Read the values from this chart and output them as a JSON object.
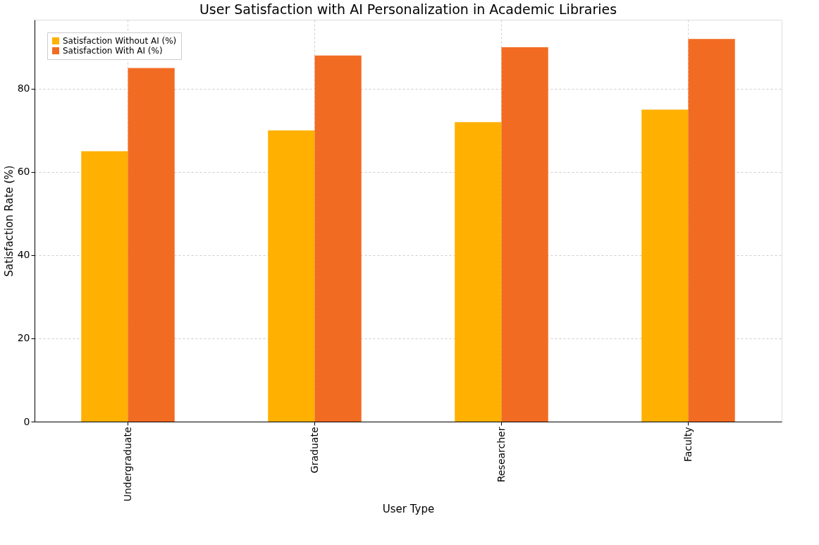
{
  "chart_data": {
    "type": "bar",
    "title": "User Satisfaction with AI Personalization in Academic Libraries",
    "xlabel": "User Type",
    "ylabel": "Satisfaction Rate (%)",
    "categories": [
      "Undergraduate",
      "Graduate",
      "Researcher",
      "Faculty"
    ],
    "series": [
      {
        "name": "Satisfaction Without AI (%)",
        "color": "#ffb000",
        "values": [
          65,
          70,
          72,
          75
        ]
      },
      {
        "name": "Satisfaction With AI (%)",
        "color": "#f26b22",
        "values": [
          85,
          88,
          90,
          92
        ]
      }
    ],
    "ylim": [
      0,
      96.6
    ],
    "yticks": [
      0,
      20,
      40,
      60,
      80
    ],
    "grid": true,
    "legend": "top left"
  }
}
